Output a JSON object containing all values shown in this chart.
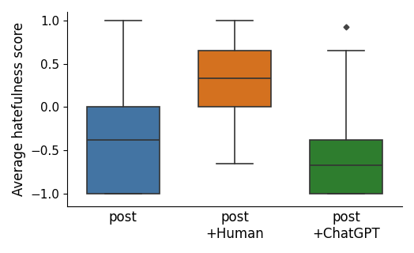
{
  "boxes": [
    {
      "label": "post",
      "color": "#4374a3",
      "q1": -1.0,
      "median": -0.38,
      "q3": 0.0,
      "whisker_low": -1.0,
      "whisker_high": 1.0,
      "fliers": []
    },
    {
      "label": "post\n+Human",
      "color": "#d4711f",
      "q1": 0.0,
      "median": 0.33,
      "q3": 0.65,
      "whisker_low": -0.65,
      "whisker_high": 1.0,
      "fliers": []
    },
    {
      "label": "post\n+ChatGPT",
      "color": "#2e7d2e",
      "q1": -1.0,
      "median": -0.67,
      "q3": -0.38,
      "whisker_low": -1.0,
      "whisker_high": 0.65,
      "fliers": [
        0.93
      ]
    }
  ],
  "ylabel": "Average hatefulness score",
  "ylim": [
    -1.15,
    1.1
  ],
  "yticks": [
    -1.0,
    -0.5,
    0.0,
    0.5,
    1.0
  ],
  "box_width": 0.65,
  "linecolor": "#333333",
  "linewidth": 1.2,
  "flier_color": "#444444",
  "flier_marker": "D",
  "flier_size": 3.5,
  "medianline_color": "#333333"
}
